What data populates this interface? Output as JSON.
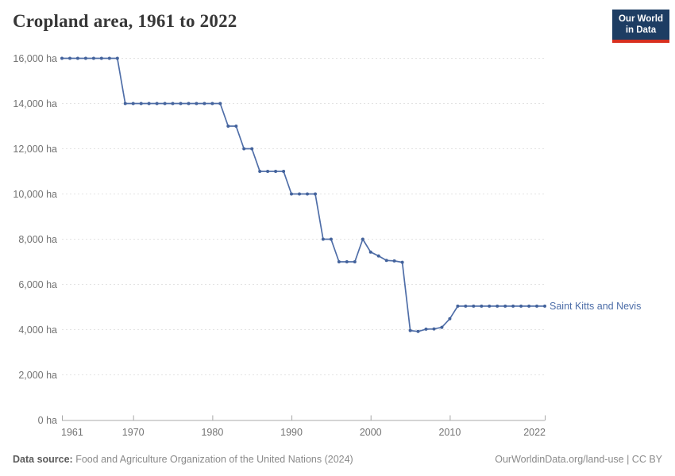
{
  "header": {
    "title": "Cropland area, 1961 to 2022",
    "logo": {
      "line1": "Our World",
      "line2": "in Data"
    }
  },
  "footer": {
    "source_label": "Data source:",
    "source_text": " Food and Agriculture Organization of the United Nations (2024)",
    "credit": "OurWorldinData.org/land-use | CC BY"
  },
  "chart_data": {
    "type": "line",
    "title": "Cropland area, 1961 to 2022",
    "entity": "Saint Kitts and Nevis",
    "unit": "ha",
    "x": [
      1961,
      1962,
      1963,
      1964,
      1965,
      1966,
      1967,
      1968,
      1969,
      1970,
      1971,
      1972,
      1973,
      1974,
      1975,
      1976,
      1977,
      1978,
      1979,
      1980,
      1981,
      1982,
      1983,
      1984,
      1985,
      1986,
      1987,
      1988,
      1989,
      1990,
      1991,
      1992,
      1993,
      1994,
      1995,
      1996,
      1997,
      1998,
      1999,
      2000,
      2001,
      2002,
      2003,
      2004,
      2005,
      2006,
      2007,
      2008,
      2009,
      2010,
      2011,
      2012,
      2013,
      2014,
      2015,
      2016,
      2017,
      2018,
      2019,
      2020,
      2021,
      2022
    ],
    "series": [
      {
        "name": "Saint Kitts and Nevis",
        "values": [
          16000,
          16000,
          16000,
          16000,
          16000,
          16000,
          16000,
          16000,
          14000,
          14000,
          14000,
          14000,
          14000,
          14000,
          14000,
          14000,
          14000,
          14000,
          14000,
          14000,
          14000,
          13000,
          13000,
          12000,
          12000,
          11000,
          11000,
          11000,
          11000,
          10000,
          10000,
          10000,
          10000,
          8000,
          8000,
          7000,
          7000,
          7000,
          8000,
          7430,
          7260,
          7060,
          7040,
          6980,
          3960,
          3920,
          4020,
          4030,
          4100,
          4480,
          5040,
          5040,
          5040,
          5040,
          5040,
          5040,
          5040,
          5040,
          5040,
          5040,
          5040,
          5040
        ]
      }
    ],
    "xlabel": "",
    "ylabel": "",
    "xlim": [
      1961,
      2022
    ],
    "ylim": [
      0,
      16000
    ],
    "ytick_step": 2000,
    "ytick_suffix": " ha",
    "xticks": [
      1961,
      1970,
      1980,
      1990,
      2000,
      2010,
      2022
    ],
    "grid": "horizontal-dashed",
    "legend_position": "right-of-line-end",
    "colors": {
      "line": "#4f6ea8",
      "dot": "#44639c",
      "entity_label": "#4c6da8",
      "grid": "#e3e3e3",
      "axis": "#a8a8a8",
      "tick_text": "#737373"
    }
  }
}
